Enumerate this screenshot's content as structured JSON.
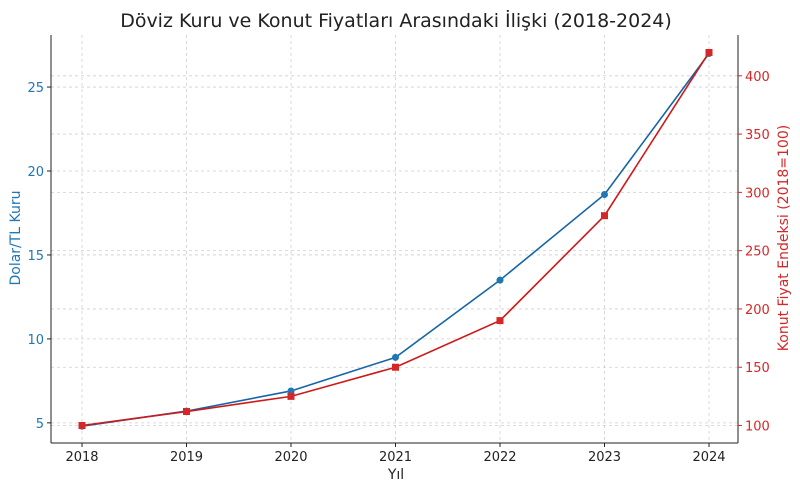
{
  "colors": {
    "left_series": "#1f77b4",
    "right_series": "#d62728",
    "line_left": "#1565a8",
    "line_right": "#cc1a1a",
    "grid": "#cfcfcf",
    "axis": "#222222"
  },
  "chart_data": {
    "type": "line",
    "title": "Döviz Kuru ve Konut Fiyatları Arasındaki İlişki (2018-2024)",
    "xlabel": "Yıl",
    "ylabel_left": "Dolar/TL Kuru",
    "ylabel_right": "Konut Fiyat Endeksi (2018=100)",
    "grid": true,
    "categories": [
      "2018",
      "2019",
      "2020",
      "2021",
      "2022",
      "2023",
      "2024"
    ],
    "ylim_left": [
      3.8,
      28.1
    ],
    "ylim_right": [
      85,
      435
    ],
    "yticks_left": [
      5,
      10,
      15,
      20,
      25
    ],
    "yticks_right": [
      100,
      150,
      200,
      250,
      300,
      350,
      400
    ],
    "series": [
      {
        "axis": "left",
        "marker": "circle",
        "values": [
          4.8,
          5.7,
          6.9,
          8.9,
          13.5,
          18.6,
          27.0
        ]
      },
      {
        "axis": "right",
        "marker": "square",
        "values": [
          100,
          112,
          125,
          150,
          190,
          280,
          420
        ]
      }
    ]
  }
}
